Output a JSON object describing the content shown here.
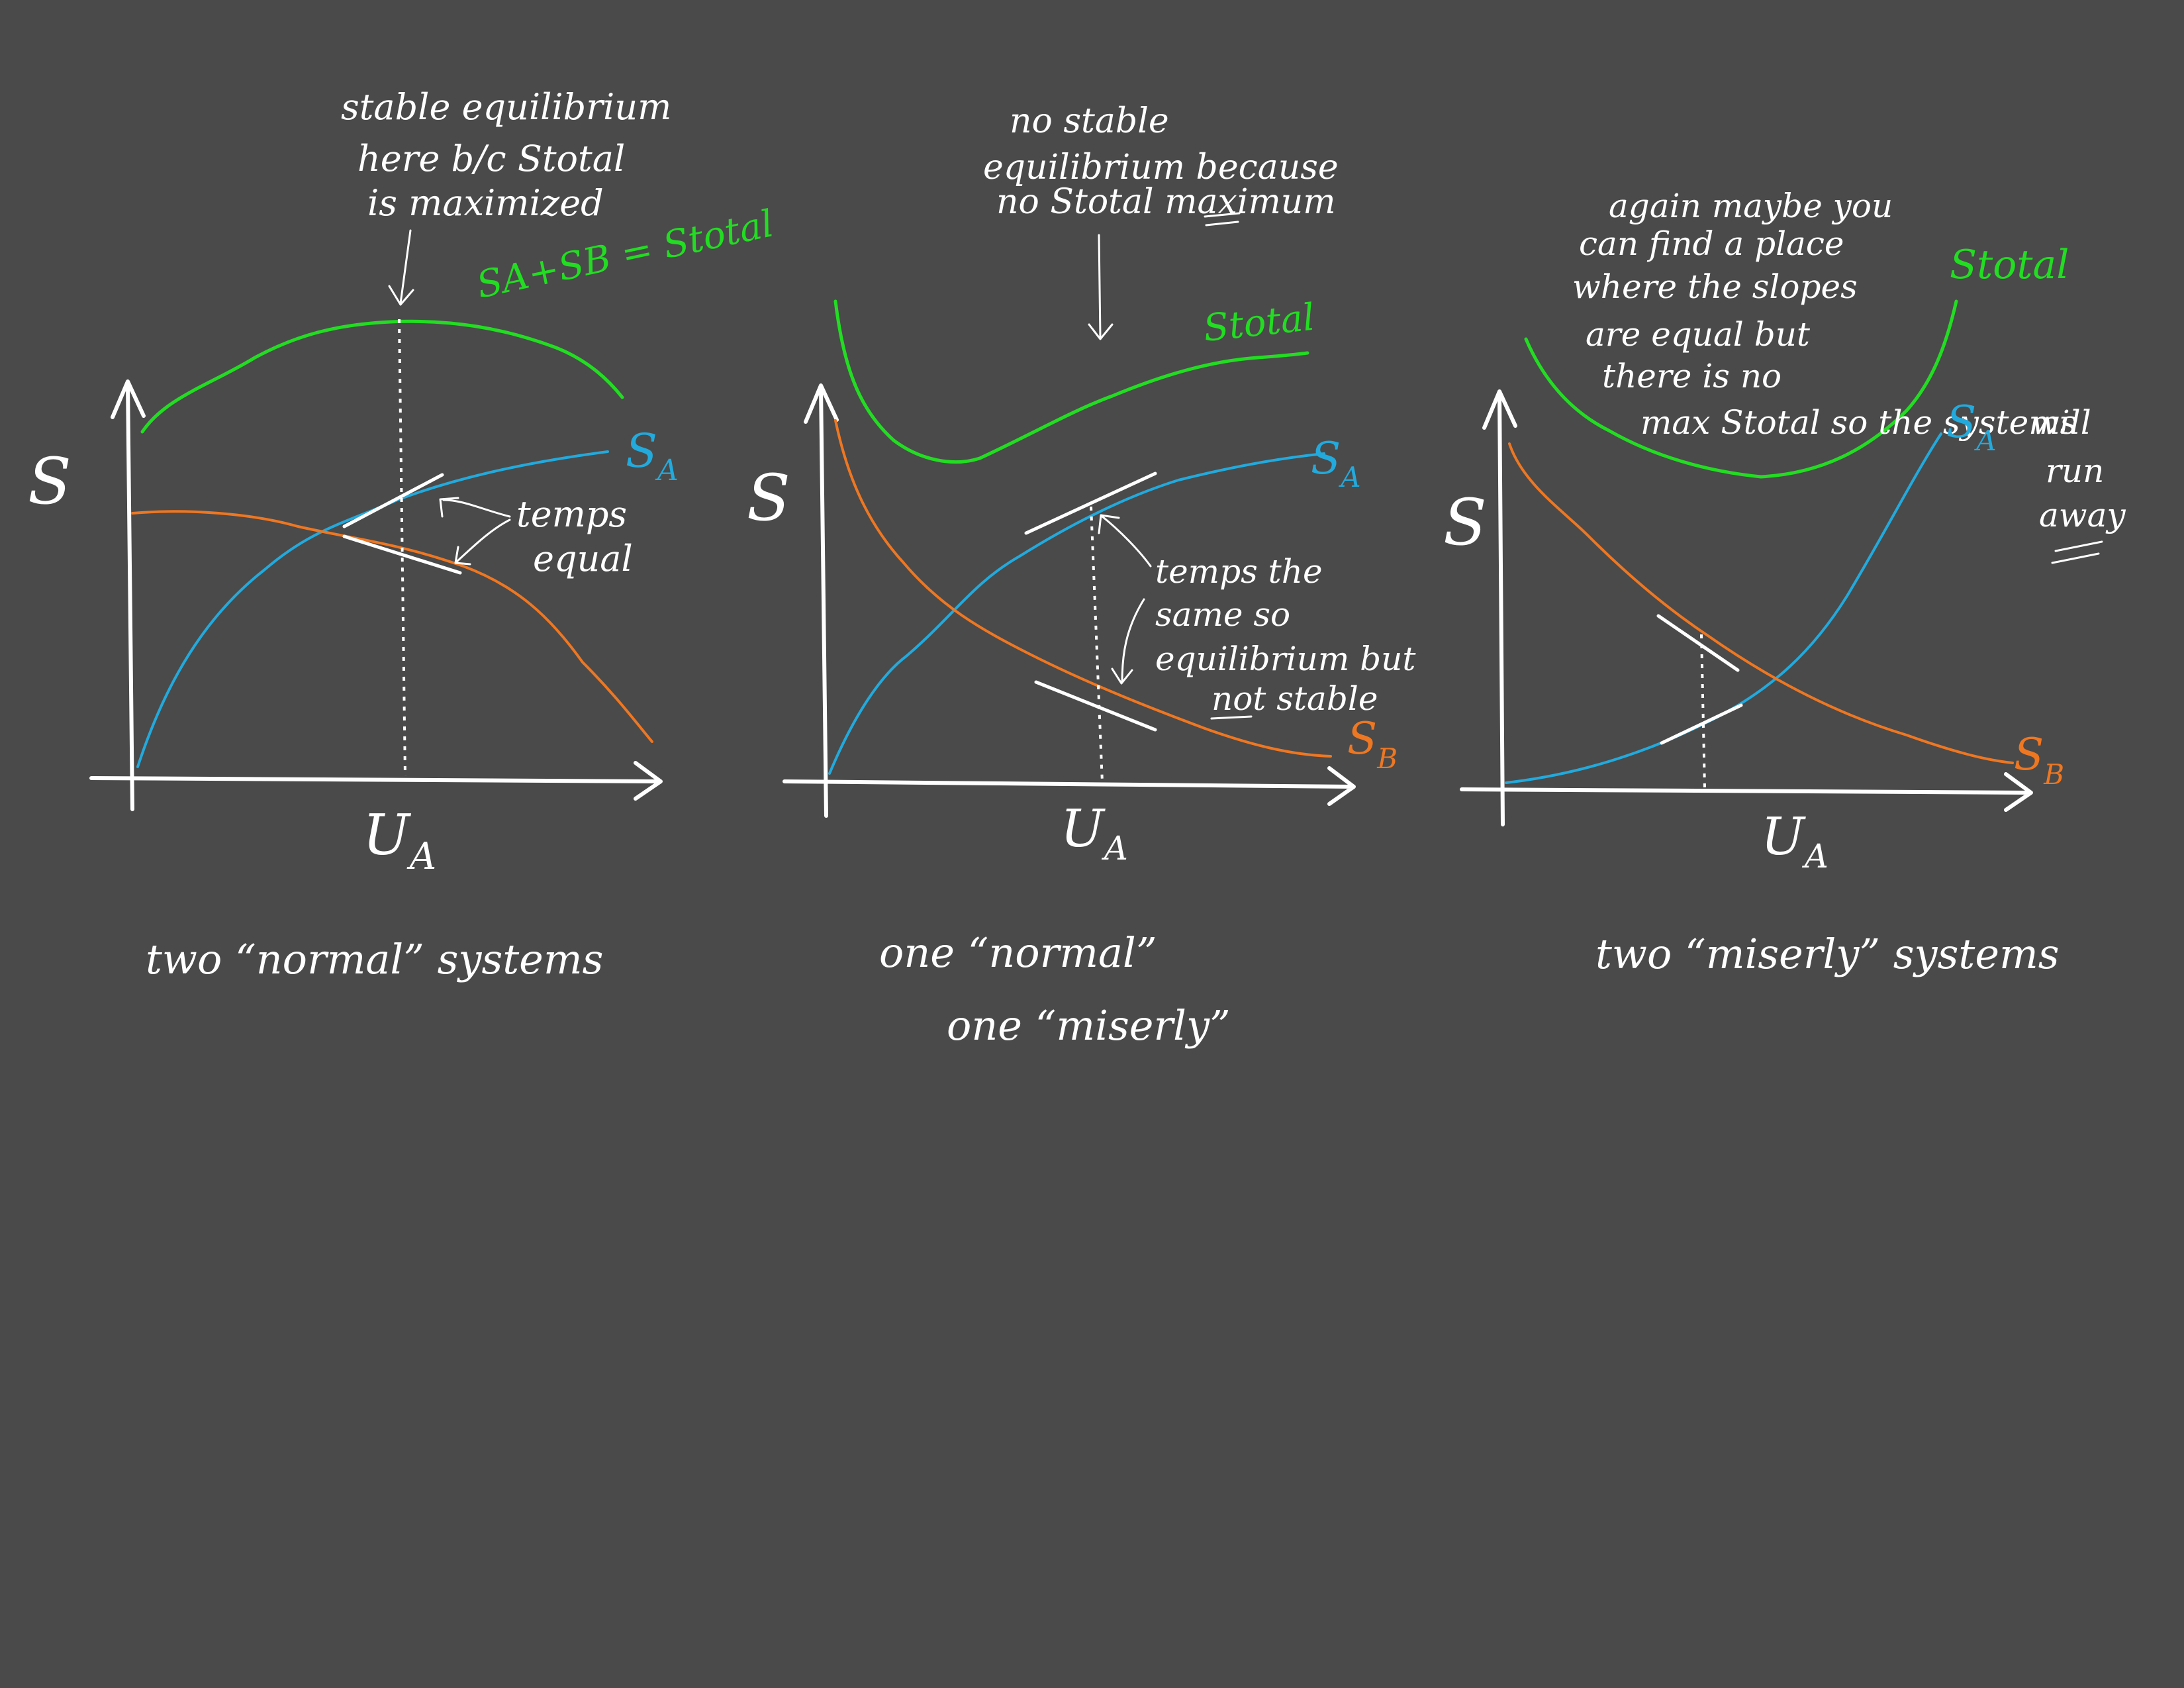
{
  "colors": {
    "background": "#4a4a4a",
    "ink": "#ffffff",
    "s_total": "#22dd22",
    "s_a": "#22aadd",
    "s_b": "#ee7722"
  },
  "panel1": {
    "y_label": "S",
    "x_label_main": "U",
    "x_label_sub": "A",
    "note": [
      "stable equilibrium",
      "here b/c Stotal",
      "is maximized"
    ],
    "sum_label": "SA+SB = Stotal",
    "sa_label_main": "S",
    "sa_label_sub": "A",
    "temps_note": [
      "temps",
      "equal"
    ],
    "caption": "two “normal” systems"
  },
  "panel2": {
    "y_label": "S",
    "x_label_main": "U",
    "x_label_sub": "A",
    "note": [
      "no stable",
      "equilibrium because",
      "no Stotal maximum"
    ],
    "stotal_label": "Stotal",
    "sa_label_main": "S",
    "sa_label_sub": "A",
    "sb_label_main": "S",
    "sb_label_sub": "B",
    "temps_note": [
      "temps the",
      "same so",
      "equilibrium but",
      "not stable"
    ],
    "caption_lines": [
      "one “normal”",
      "one “miserly”"
    ]
  },
  "panel3": {
    "y_label": "S",
    "x_label_main": "U",
    "x_label_sub": "A",
    "note": [
      "again maybe you",
      "can find a place",
      "where the slopes",
      "are equal but",
      "there is no",
      "max Stotal so the systems",
      "will",
      "run",
      "away"
    ],
    "stotal_label": "Stotal",
    "sa_label_main": "S",
    "sa_label_sub": "A",
    "sb_label_main": "S",
    "sb_label_sub": "B",
    "caption": "two “miserly” systems"
  }
}
